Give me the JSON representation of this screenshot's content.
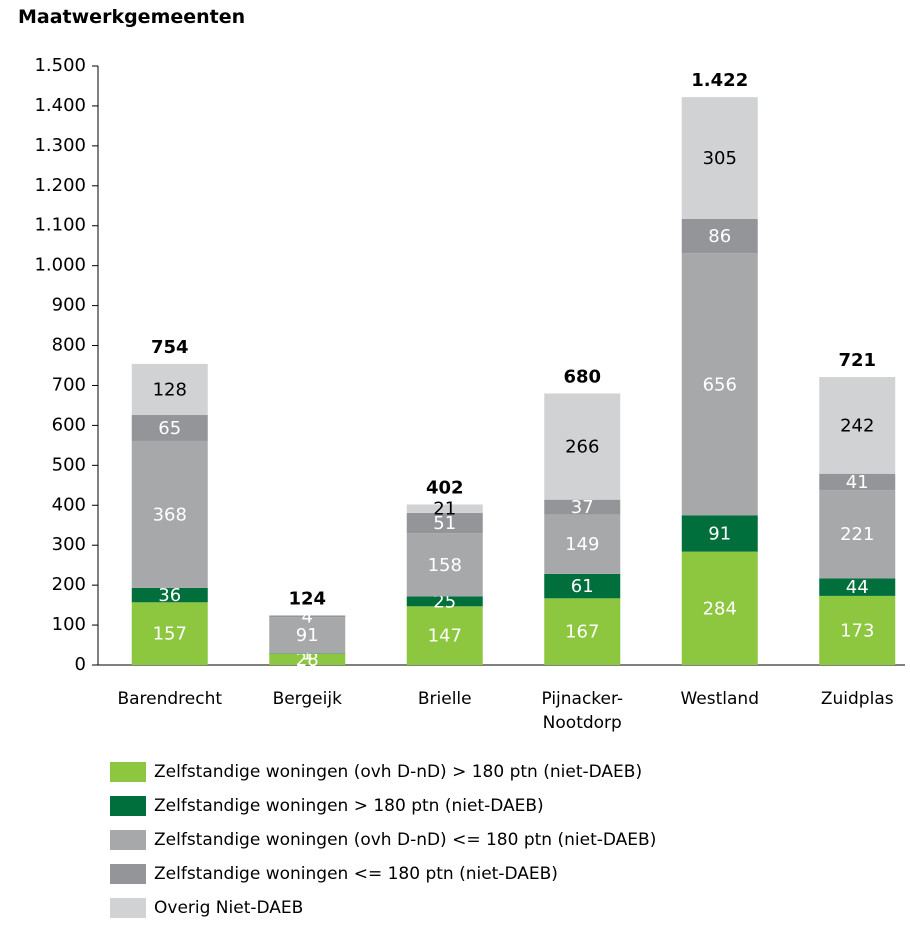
{
  "chart_data": {
    "type": "stacked_bar",
    "title": "Maatwerkgemeenten",
    "categories": [
      "Barendrecht",
      "Bergeijk",
      "Brielle",
      "Pijnacker-\nNootdorp",
      "Westland",
      "Zuidplas"
    ],
    "series": [
      {
        "name": "Zelfstandige woningen (ovh D-nD) > 180 ptn (niet-DAEB)",
        "color": "#8dc63f",
        "label_color": "#ffffff",
        "values": [
          157,
          28,
          147,
          167,
          284,
          173
        ]
      },
      {
        "name": "Zelfstandige woningen > 180 ptn (niet-DAEB)",
        "color": "#006f3c",
        "label_color": "#ffffff",
        "values": [
          36,
          1,
          25,
          61,
          91,
          44
        ]
      },
      {
        "name": "Zelfstandige woningen (ovh D-nD) <= 180 ptn (niet-DAEB)",
        "color": "#a7a8aa",
        "label_color": "#ffffff",
        "values": [
          368,
          91,
          158,
          149,
          656,
          221
        ]
      },
      {
        "name": "Zelfstandige woningen <= 180 ptn (niet-DAEB)",
        "color": "#939598",
        "label_color": "#ffffff",
        "values": [
          65,
          4,
          51,
          37,
          86,
          41
        ]
      },
      {
        "name": "Overig Niet-DAEB",
        "color": "#d1d2d3",
        "label_color": "#000000",
        "values": [
          128,
          null,
          21,
          266,
          305,
          242
        ]
      }
    ],
    "totals": {
      "values": [
        754,
        124,
        402,
        680,
        1422,
        721
      ],
      "value_labels": [
        "754",
        "124",
        "402",
        "680",
        "1.422",
        "721"
      ]
    },
    "ylim": [
      0,
      1500
    ],
    "yticks": [
      0,
      100,
      200,
      300,
      400,
      500,
      600,
      700,
      800,
      900,
      {
        "value": 1000,
        "label": "1.000"
      },
      {
        "value": 1100,
        "label": "1.100"
      },
      {
        "value": 1200,
        "label": "1.200"
      },
      {
        "value": 1300,
        "label": "1.300"
      },
      {
        "value": 1400,
        "label": "1.400"
      },
      {
        "value": 1500,
        "label": "1.500"
      }
    ],
    "grid": false
  }
}
